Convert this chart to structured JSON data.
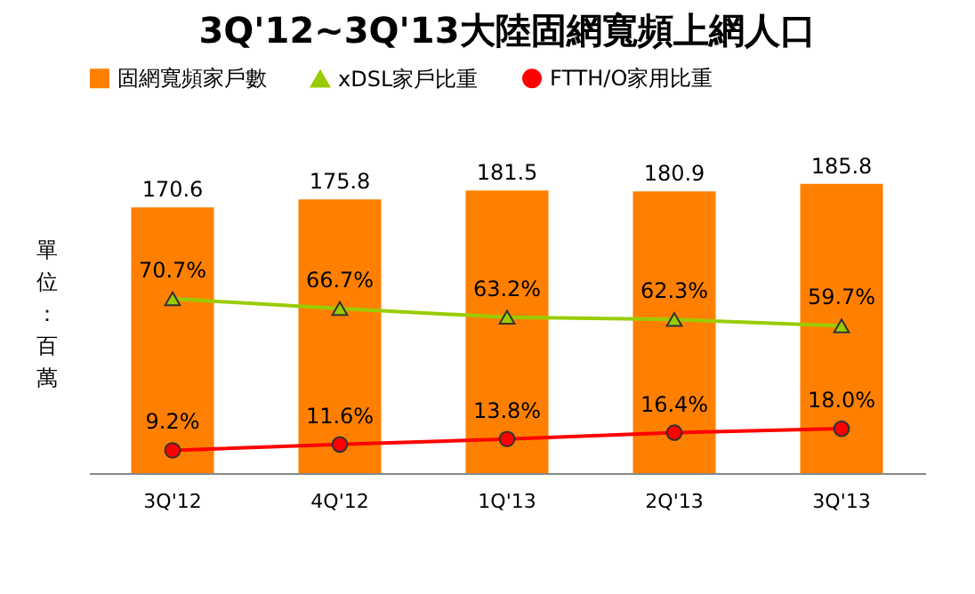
{
  "chart_data": {
    "type": "bar",
    "title": "3Q'12~3Q'13大陸固網寬頻上網人口",
    "ylabel": "單位：百萬",
    "categories": [
      "3Q'12",
      "4Q'12",
      "1Q'13",
      "2Q'13",
      "3Q'13"
    ],
    "series": [
      {
        "name": "固網寬頻家戶數",
        "color": "#ff8000",
        "values": [
          170.6,
          175.8,
          181.5,
          180.9,
          185.8
        ],
        "value_labels": [
          "170.6",
          "175.8",
          "181.5",
          "180.9",
          "185.8"
        ]
      },
      {
        "name": "xDSL家戶比重",
        "type": "line",
        "axis": "y2",
        "marker": "triangle",
        "color": "#99cc00",
        "values": [
          70.7,
          66.7,
          63.2,
          62.3,
          59.7
        ],
        "value_labels": [
          "70.7%",
          "66.7%",
          "63.2%",
          "62.3%",
          "59.7%"
        ]
      },
      {
        "name": "FTTH/O家用比重",
        "type": "line",
        "axis": "y2",
        "marker": "circle",
        "color": "#ff0000",
        "values": [
          9.2,
          11.6,
          13.8,
          16.4,
          18.0
        ],
        "value_labels": [
          "9.2%",
          "11.6%",
          "13.8%",
          "16.4%",
          "18.0%"
        ]
      }
    ],
    "tick_labels": "x",
    "legend": "top"
  }
}
